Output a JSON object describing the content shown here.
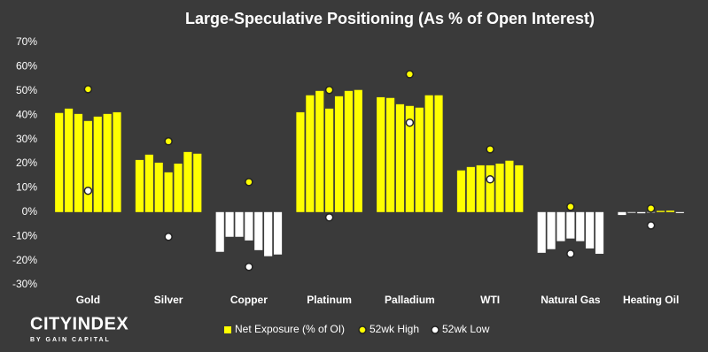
{
  "chart_data": {
    "type": "grouped_bar_dot",
    "title": "Large-Speculative Positioning (As % of Open Interest)",
    "categories": [
      "Gold",
      "Silver",
      "Copper",
      "Platinum",
      "Palladium",
      "WTI",
      "Natural Gas",
      "Heating Oil"
    ],
    "series": [
      {
        "name": "Net Exposure (% of OI)",
        "color": "#ffff00",
        "negative_color": "#ffffff",
        "values": [
          [
            40.9,
            42.7,
            40.5,
            37.6,
            39.4,
            40.5,
            41.2
          ],
          [
            21.5,
            23.7,
            20.4,
            16.4,
            20,
            24.8,
            24.1
          ],
          [
            -16.4,
            -10.2,
            -10.2,
            -11.7,
            -15.7,
            -18.2,
            -17.5
          ],
          [
            41.2,
            48.2,
            50,
            42.7,
            47.8,
            50,
            50.4
          ],
          [
            47.4,
            47.1,
            44.5,
            43.8,
            43.1,
            48.2,
            48.2
          ],
          [
            17.2,
            18.6,
            19.3,
            19.3,
            20,
            21.2,
            19.3
          ],
          [
            -16.8,
            -15.3,
            -12,
            -10.9,
            -12,
            -15,
            -17.2
          ],
          [
            -1.2,
            -0.3,
            -0.5,
            -0.2,
            0.5,
            0.6,
            -0.4
          ]
        ]
      },
      {
        "name": "52wk High",
        "color": "#ffff00",
        "values": [
          50.7,
          29.2,
          12.4,
          50.4,
          56.9,
          25.9,
          2.2,
          1.5
        ]
      },
      {
        "name": "52wk Low",
        "color": "#ffffff",
        "values": [
          8.8,
          -10.2,
          -22.6,
          -2.2,
          36.9,
          13.5,
          -17.2,
          -5.5
        ]
      }
    ],
    "ylim": [
      -30,
      70
    ],
    "yticks": [
      {
        "value": -30,
        "label": "-30%"
      },
      {
        "value": -20,
        "label": "-20%"
      },
      {
        "value": -10,
        "label": "-10%"
      },
      {
        "value": 0,
        "label": "0%"
      },
      {
        "value": 10,
        "label": "10%"
      },
      {
        "value": 20,
        "label": "20%"
      },
      {
        "value": 30,
        "label": "30%"
      },
      {
        "value": 40,
        "label": "40%"
      },
      {
        "value": 50,
        "label": "50%"
      },
      {
        "value": 60,
        "label": "60%"
      },
      {
        "value": 70,
        "label": "70%"
      }
    ],
    "grid": false,
    "legend": "bottom"
  },
  "brand": {
    "name": "CITYINDEX",
    "tagline": "BY GAIN CAPITAL"
  }
}
